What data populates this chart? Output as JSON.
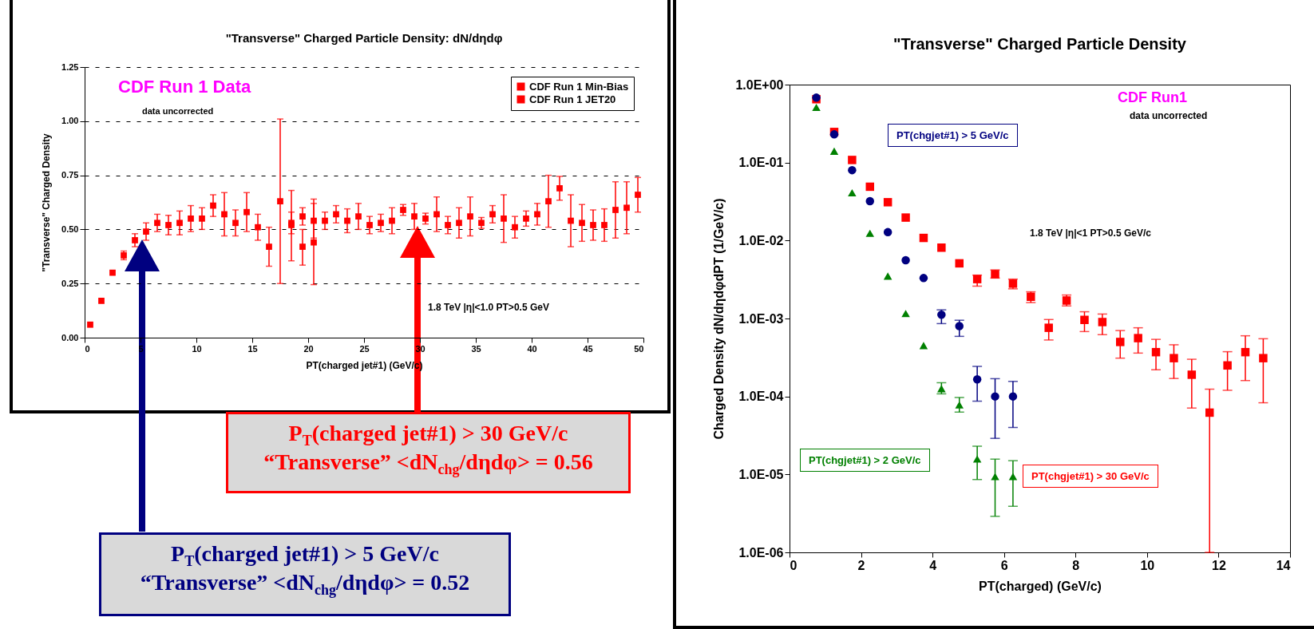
{
  "chart_data": [
    {
      "type": "scatter",
      "title": "\"Transverse\" Charged Particle Density: dN/dηdφ",
      "xlabel": "PT(charged jet#1)  (GeV/c)",
      "ylabel": "\"Transverse\" Charged Density",
      "xlim": [
        0,
        50
      ],
      "xticks": [
        0,
        5,
        10,
        15,
        20,
        25,
        30,
        35,
        40,
        45,
        50
      ],
      "ylim": [
        0,
        1.25
      ],
      "yticks": [
        {
          "value": 0,
          "label": "0.00"
        },
        {
          "value": 0.25,
          "label": "0.25"
        },
        {
          "value": 0.5,
          "label": "0.50"
        },
        {
          "value": 0.75,
          "label": "0.75"
        },
        {
          "value": 1,
          "label": "1.00"
        },
        {
          "value": 1.25,
          "label": "1.25"
        }
      ],
      "grid": "y",
      "legend": "top right",
      "annotations": [
        "CDF Run 1 Data",
        "data uncorrected",
        "1.8 TeV |η|<1.0 PT>0.5 GeV",
        "P$_{T}$(charged jet#1) > 30 GeV/c",
        "“Transverse” <dN$_{chg}$/dηdφ> = 0.56",
        "P$_{T}$(charged jet#1) > 5 GeV/c",
        "“Transverse” <dN$_{chg}$/dηdφ> = 0.52"
      ],
      "series": [
        {
          "name": "CDF Run 1 Min-Bias",
          "color": "#ff0000",
          "marker": "square",
          "x": [
            0.5,
            1.5,
            2.5,
            3.5,
            4.5,
            5.5,
            6.5,
            7.5,
            8.5,
            9.5,
            10.5,
            11.5,
            12.5,
            13.5,
            14.5,
            15.5,
            16.5,
            17.5,
            18.5,
            19.5,
            20.5
          ],
          "values": [
            0.06,
            0.17,
            0.3,
            0.38,
            0.45,
            0.49,
            0.53,
            0.52,
            0.53,
            0.55,
            0.55,
            0.61,
            0.57,
            0.53,
            0.58,
            0.51,
            0.42,
            0.63,
            0.52,
            0.42,
            0.44
          ],
          "errors": [
            null,
            null,
            null,
            0.02,
            0.03,
            0.04,
            0.04,
            0.045,
            0.055,
            0.06,
            0.05,
            0.05,
            0.1,
            0.06,
            0.09,
            0.06,
            0.09,
            [
              0.25,
              1.01
            ],
            [
              0.355,
              0.68
            ],
            [
              0.335,
              0.5
            ],
            [
              0.245,
              0.64
            ]
          ]
        },
        {
          "name": "CDF Run 1 JET20",
          "color": "#ff0000",
          "marker": "square",
          "x": [
            18.5,
            19.5,
            20.5,
            21.5,
            22.5,
            23.5,
            24.5,
            25.5,
            26.5,
            27.5,
            28.5,
            29.5,
            30.5,
            31.5,
            32.5,
            33.5,
            34.5,
            35.5,
            36.5,
            37.5,
            38.5,
            39.5,
            40.5,
            41.5,
            42.5,
            43.5,
            44.5,
            45.5,
            46.5,
            47.5,
            48.5,
            49.5
          ],
          "values": [
            0.53,
            0.56,
            0.54,
            0.54,
            0.57,
            0.54,
            0.56,
            0.52,
            0.53,
            0.54,
            0.59,
            0.56,
            0.55,
            0.57,
            0.52,
            0.53,
            0.56,
            0.53,
            0.57,
            0.55,
            0.51,
            0.55,
            0.57,
            0.63,
            0.69,
            0.54,
            0.53,
            0.52,
            0.52,
            0.59,
            0.6,
            0.66
          ],
          "errors": [
            0.05,
            0.04,
            0.08,
            0.04,
            0.04,
            0.055,
            0.06,
            0.04,
            0.04,
            0.06,
            0.025,
            0.06,
            0.025,
            0.08,
            0.04,
            0.07,
            0.09,
            0.025,
            0.04,
            0.11,
            0.05,
            0.035,
            0.05,
            0.12,
            0.055,
            0.12,
            0.085,
            0.07,
            0.075,
            0.13,
            0.12,
            0.08
          ]
        }
      ]
    },
    {
      "type": "scatter",
      "title": "\"Transverse\" Charged Particle Density",
      "xlabel": "PT(charged)  (GeV/c)",
      "ylabel": "Charged Density dN/dηdφdPT (1/GeV/c)",
      "log": "y",
      "xlim": [
        0,
        14
      ],
      "xticks": [
        0,
        2,
        4,
        6,
        8,
        10,
        12,
        14
      ],
      "ylim": [
        1e-06,
        1
      ],
      "yticks": [
        {
          "value": 1e-06,
          "label": "1.0E-06"
        },
        {
          "value": 1e-05,
          "label": "1.0E-05"
        },
        {
          "value": 0.0001,
          "label": "1.0E-04"
        },
        {
          "value": 0.001,
          "label": "1.0E-03"
        },
        {
          "value": 0.01,
          "label": "1.0E-02"
        },
        {
          "value": 0.1,
          "label": "1.0E-01"
        },
        {
          "value": 1,
          "label": "1.0E+00"
        }
      ],
      "annotations": [
        "CDF Run1",
        "data uncorrected",
        "1.8 TeV |η|<1 PT>0.5 GeV/c"
      ],
      "series": [
        {
          "name": "PT(chgjet#1) > 30 GeV/c",
          "color": "#ff0000",
          "marker": "square",
          "x": [
            0.75,
            1.25,
            1.75,
            2.25,
            2.75,
            3.25,
            3.75,
            4.25,
            4.75,
            5.25,
            5.75,
            6.25,
            6.75,
            7.25,
            7.75,
            8.25,
            8.75,
            9.25,
            9.75,
            10.25,
            10.75,
            11.25,
            11.75,
            12.25,
            12.75,
            13.25
          ],
          "values": [
            0.65,
            0.247,
            0.108,
            0.049,
            0.031,
            0.0197,
            0.0108,
            0.0081,
            0.0051,
            0.0032,
            0.0037,
            0.0028,
            0.0019,
            0.00076,
            0.0017,
            0.00096,
            0.0009,
            0.0005,
            0.00056,
            0.00037,
            0.00031,
            0.00019,
            6.2e-05,
            0.00025,
            0.00037,
            0.00031
          ],
          "errors": [
            null,
            null,
            null,
            null,
            null,
            null,
            null,
            null,
            null,
            [
              0.0026,
              0.0036
            ],
            [
              0.0033,
              0.0042
            ],
            [
              0.0024,
              0.0032
            ],
            [
              0.0016,
              0.0022
            ],
            [
              0.00053,
              0.00097
            ],
            [
              0.00145,
              0.002
            ],
            [
              0.00068,
              0.00122
            ],
            [
              0.00062,
              0.00114
            ],
            [
              0.00031,
              0.0007
            ],
            [
              0.00036,
              0.00076
            ],
            [
              0.00022,
              0.00054
            ],
            [
              0.00017,
              0.00046
            ],
            [
              7.1e-05,
              0.0003
            ],
            [
              1e-06,
              0.000124
            ],
            [
              0.00012,
              0.000375
            ],
            [
              0.00016,
              0.0006
            ],
            [
              8.3e-05,
              0.00055
            ]
          ]
        },
        {
          "name": "PT(chgjet#1) > 5 GeV/c",
          "color": "#000080",
          "marker": "circle",
          "x": [
            0.75,
            1.25,
            1.75,
            2.25,
            2.75,
            3.25,
            3.75,
            4.25,
            4.75,
            5.25,
            5.75,
            6.25
          ],
          "values": [
            0.68,
            0.23,
            0.08,
            0.032,
            0.0128,
            0.0056,
            0.0033,
            0.00112,
            0.0008,
            0.000166,
            0.0001,
            0.0001
          ],
          "errors": [
            null,
            null,
            null,
            null,
            null,
            null,
            null,
            [
              0.00086,
              0.00129
            ],
            [
              0.00059,
              0.00095
            ],
            [
              8.7e-05,
              0.000243
            ],
            [
              2.9e-05,
              0.000169
            ],
            [
              4e-05,
              0.000156
            ]
          ]
        },
        {
          "name": "PT(chgjet#1) > 2 GeV/c",
          "color": "#008000",
          "marker": "triangle",
          "x": [
            0.75,
            1.25,
            1.75,
            2.25,
            2.75,
            3.25,
            3.75,
            4.25,
            4.75,
            5.25,
            5.75,
            6.25
          ],
          "values": [
            0.51,
            0.14,
            0.041,
            0.0124,
            0.0035,
            0.00116,
            0.00045,
            0.000126,
            7.8e-05,
            1.58e-05,
            9.4e-06,
            9.4e-06
          ],
          "errors": [
            null,
            null,
            null,
            null,
            null,
            null,
            null,
            [
              0.000108,
              0.00015
            ],
            [
              6.3e-05,
              9.7e-05
            ],
            [
              8.6e-06,
              2.3e-05
            ],
            [
              2.9e-06,
              1.57e-05
            ],
            [
              3.9e-06,
              1.5e-05
            ]
          ]
        }
      ]
    }
  ]
}
